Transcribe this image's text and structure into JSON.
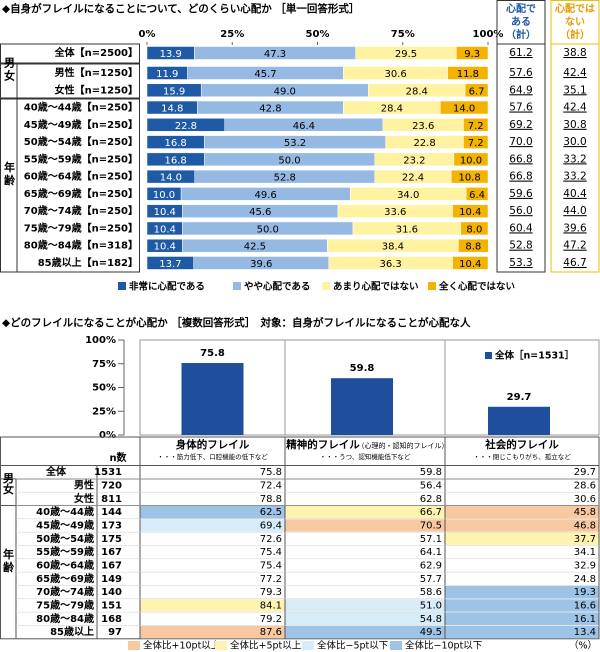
{
  "chart_data": [
    {
      "type": "stacked_barh",
      "title": "◆自身がフレイルになることについて、どのくらい心配か ［単一回答形式］",
      "categories": [
        "全体【n=2500】",
        "男性【n=1250】",
        "女性【n=1250】",
        "40歳～44歳【n=250】",
        "45歳～49歳【n=250】",
        "50歳～54歳【n=250】",
        "55歳～59歳【n=250】",
        "60歳～64歳【n=250】",
        "65歳～69歳【n=250】",
        "70歳～74歳【n=250】",
        "75歳～79歳【n=250】",
        "80歳～84歳【n=318】",
        "85歳以上【n=182】"
      ],
      "groups": [
        "男女",
        "年齢"
      ],
      "xlim": [
        0,
        100
      ],
      "xticks": [
        {
          "value": 0,
          "label": "0%"
        },
        {
          "value": 25,
          "label": "25%"
        },
        {
          "value": 50,
          "label": "50%"
        },
        {
          "value": 75,
          "label": "75%"
        },
        {
          "value": 100,
          "label": "100%"
        }
      ],
      "series": [
        {
          "name": "非常に心配である",
          "color": "#1f5aa6",
          "values": [
            13.9,
            11.9,
            15.9,
            14.8,
            22.8,
            16.8,
            16.8,
            14.0,
            10.0,
            10.4,
            10.4,
            10.4,
            13.7
          ],
          "value_labels": [
            "13.9",
            "11.9",
            "15.9",
            "14.8",
            "22.8",
            "16.8",
            "16.8",
            "14.0",
            "10.0",
            "10.4",
            "10.4",
            "10.4",
            "13.7"
          ]
        },
        {
          "name": "やや心配である",
          "color": "#95b9e3",
          "values": [
            47.3,
            45.7,
            49.0,
            42.8,
            46.4,
            53.2,
            50.0,
            52.8,
            49.6,
            45.6,
            50.0,
            42.5,
            39.6
          ],
          "value_labels": [
            "47.3",
            "45.7",
            "49.0",
            "42.8",
            "46.4",
            "53.2",
            "50.0",
            "52.8",
            "49.6",
            "45.6",
            "50.0",
            "42.5",
            "39.6"
          ]
        },
        {
          "name": "あまり心配ではない",
          "color": "#fff2a1",
          "values": [
            29.5,
            30.6,
            28.4,
            28.4,
            23.6,
            22.8,
            23.2,
            22.4,
            34.0,
            33.6,
            31.6,
            38.4,
            36.3
          ],
          "value_labels": [
            "29.5",
            "30.6",
            "28.4",
            "28.4",
            "23.6",
            "22.8",
            "23.2",
            "22.4",
            "34.0",
            "33.6",
            "31.6",
            "38.4",
            "36.3"
          ]
        },
        {
          "name": "全く心配ではない",
          "color": "#f3b300",
          "values": [
            9.3,
            11.8,
            6.7,
            14.0,
            7.2,
            7.2,
            10.0,
            10.8,
            6.4,
            10.4,
            8.0,
            8.8,
            10.4
          ],
          "value_labels": [
            "9.3",
            "11.8",
            "6.7",
            "14.0",
            "7.2",
            "7.2",
            "10.0",
            "10.8",
            "6.4",
            "10.4",
            "8.0",
            "8.8",
            "10.4"
          ]
        }
      ],
      "summary": {
        "headers": [
          [
            "心配で",
            "ある",
            "（計）"
          ],
          [
            "心配では",
            "ない",
            "（計）"
          ]
        ],
        "colors": [
          "#1f5aa6",
          "#e69a00"
        ],
        "rows": [
          [
            "61.2",
            "38.8"
          ],
          [
            "57.6",
            "42.4"
          ],
          [
            "64.9",
            "35.1"
          ],
          [
            "57.6",
            "42.4"
          ],
          [
            "69.2",
            "30.8"
          ],
          [
            "70.0",
            "30.0"
          ],
          [
            "66.8",
            "33.2"
          ],
          [
            "66.8",
            "33.2"
          ],
          [
            "59.6",
            "40.4"
          ],
          [
            "56.0",
            "44.0"
          ],
          [
            "60.4",
            "39.6"
          ],
          [
            "52.8",
            "47.2"
          ],
          [
            "53.3",
            "46.7"
          ]
        ]
      }
    },
    {
      "type": "bar",
      "title": "◆どのフレイルになることが心配か ［複数回答形式］　対象：自身がフレイルになることが心配な人",
      "categories": [
        "身体的フレイル",
        "精神的フレイル",
        "社会的フレイル"
      ],
      "ylim": [
        0,
        100
      ],
      "yticks": [
        {
          "value": 0,
          "label": "0%"
        },
        {
          "value": 25,
          "label": "25%"
        },
        {
          "value": 50,
          "label": "50%"
        },
        {
          "value": 75,
          "label": "75%"
        },
        {
          "value": 100,
          "label": "100%"
        }
      ],
      "series": [
        {
          "name": "全体［n=1531］",
          "color": "#1f4e9c",
          "values": [
            75.8,
            59.8,
            29.7
          ]
        }
      ]
    }
  ],
  "table": {
    "n_header": "n数",
    "column_notes": [
      {
        "note": "・・・筋力低下、口腔機能の低下など"
      },
      {
        "subtitle": "（心理的・認知的フレイル）",
        "note": "・・・うつ、認知機能低下など"
      },
      {
        "note": "・・・閉じこもりがち、孤立など"
      }
    ],
    "groups": [
      "男女",
      "年齢"
    ],
    "rows": [
      {
        "label": "全体",
        "n": "1531",
        "values": [
          "75.8",
          "59.8",
          "29.7"
        ],
        "highlight": [
          null,
          null,
          null
        ]
      },
      {
        "label": "男性",
        "n": "720",
        "values": [
          "72.4",
          "56.4",
          "28.6"
        ],
        "highlight": [
          null,
          null,
          null
        ]
      },
      {
        "label": "女性",
        "n": "811",
        "values": [
          "78.8",
          "62.8",
          "30.6"
        ],
        "highlight": [
          null,
          null,
          null
        ]
      },
      {
        "label": "40歳～44歳",
        "n": "144",
        "values": [
          "62.5",
          "66.7",
          "45.8"
        ],
        "highlight": [
          3,
          1,
          0
        ]
      },
      {
        "label": "45歳～49歳",
        "n": "173",
        "values": [
          "69.4",
          "70.5",
          "46.8"
        ],
        "highlight": [
          2,
          0,
          0
        ]
      },
      {
        "label": "50歳～54歳",
        "n": "175",
        "values": [
          "72.6",
          "57.1",
          "37.7"
        ],
        "highlight": [
          null,
          null,
          1
        ]
      },
      {
        "label": "55歳～59歳",
        "n": "167",
        "values": [
          "75.4",
          "64.1",
          "34.1"
        ],
        "highlight": [
          null,
          null,
          null
        ]
      },
      {
        "label": "60歳～64歳",
        "n": "167",
        "values": [
          "75.4",
          "62.9",
          "32.9"
        ],
        "highlight": [
          null,
          null,
          null
        ]
      },
      {
        "label": "65歳～69歳",
        "n": "149",
        "values": [
          "77.2",
          "57.7",
          "24.8"
        ],
        "highlight": [
          null,
          null,
          null
        ]
      },
      {
        "label": "70歳～74歳",
        "n": "140",
        "values": [
          "79.3",
          "58.6",
          "19.3"
        ],
        "highlight": [
          null,
          null,
          3
        ]
      },
      {
        "label": "75歳～79歳",
        "n": "151",
        "values": [
          "84.1",
          "51.0",
          "16.6"
        ],
        "highlight": [
          1,
          2,
          3
        ]
      },
      {
        "label": "80歳～84歳",
        "n": "168",
        "values": [
          "79.2",
          "54.8",
          "16.1"
        ],
        "highlight": [
          null,
          2,
          3
        ]
      },
      {
        "label": "85歳以上",
        "n": "97",
        "values": [
          "87.6",
          "49.5",
          "13.4"
        ],
        "highlight": [
          0,
          3,
          3
        ]
      }
    ],
    "legend": [
      {
        "label": "全体比+10pt以上",
        "color": "#f8c9a0"
      },
      {
        "label": "全体比+5pt以上",
        "color": "#fff3b0"
      },
      {
        "label": "全体比−5pt以下",
        "color": "#d6ecf8"
      },
      {
        "label": "全体比−10pt以下",
        "color": "#9dc3e6"
      }
    ],
    "unit": "（%）"
  }
}
